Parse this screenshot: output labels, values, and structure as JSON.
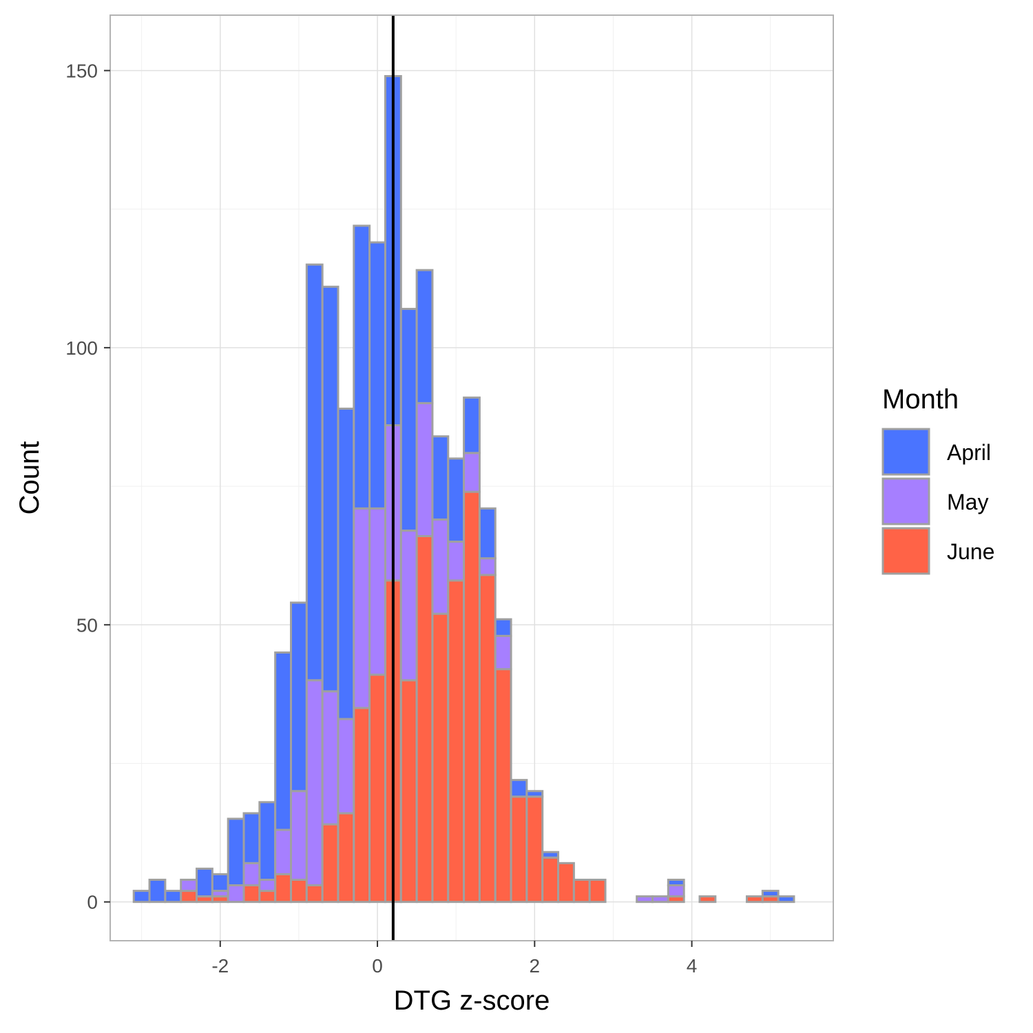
{
  "chart_data": {
    "type": "bar",
    "stacked": true,
    "xlabel": "DTG z-score",
    "ylabel": "Count",
    "xlim": [
      -3.4,
      5.8
    ],
    "ylim": [
      -7,
      160
    ],
    "x_ticks": [
      -2,
      0,
      2,
      4
    ],
    "y_ticks": [
      0,
      50,
      100,
      150
    ],
    "bin_width": 0.2,
    "bin_centers": [
      -3.0,
      -2.8,
      -2.6,
      -2.4,
      -2.2,
      -2.0,
      -1.8,
      -1.6,
      -1.4,
      -1.2,
      -1.0,
      -0.8,
      -0.6,
      -0.4,
      -0.2,
      0.0,
      0.2,
      0.4,
      0.6,
      0.8,
      1.0,
      1.2,
      1.4,
      1.6,
      1.8,
      2.0,
      2.2,
      2.4,
      2.6,
      2.8,
      3.0,
      3.2,
      3.4,
      3.6,
      3.8,
      4.0,
      4.2,
      4.4,
      4.6,
      4.8,
      5.0,
      5.2
    ],
    "vline_x": 0.2,
    "grid": true,
    "legend_position": "right",
    "legend_title": "Month",
    "series": [
      {
        "name": "June",
        "color": "#FF6347",
        "values": [
          0,
          0,
          0,
          2,
          1,
          1,
          0,
          3,
          2,
          5,
          4,
          3,
          14,
          16,
          35,
          41,
          58,
          40,
          66,
          52,
          58,
          74,
          59,
          42,
          19,
          19,
          8,
          7,
          4,
          4,
          0,
          0,
          0,
          0,
          1,
          0,
          1,
          0,
          0,
          1,
          1,
          0
        ]
      },
      {
        "name": "May",
        "color": "#A67FFF",
        "values": [
          0,
          0,
          0,
          2,
          0,
          1,
          3,
          4,
          2,
          8,
          16,
          37,
          24,
          17,
          36,
          30,
          28,
          27,
          24,
          17,
          7,
          7,
          3,
          6,
          0,
          0,
          0,
          0,
          0,
          0,
          0,
          0,
          1,
          1,
          2,
          0,
          0,
          0,
          0,
          0,
          0,
          0
        ]
      },
      {
        "name": "April",
        "color": "#4A74FF",
        "values": [
          2,
          4,
          2,
          0,
          5,
          3,
          12,
          9,
          14,
          32,
          34,
          75,
          73,
          56,
          51,
          48,
          63,
          40,
          24,
          15,
          15,
          10,
          9,
          3,
          3,
          1,
          1,
          0,
          0,
          0,
          0,
          0,
          0,
          0,
          1,
          0,
          0,
          0,
          0,
          0,
          1,
          1
        ]
      }
    ]
  }
}
